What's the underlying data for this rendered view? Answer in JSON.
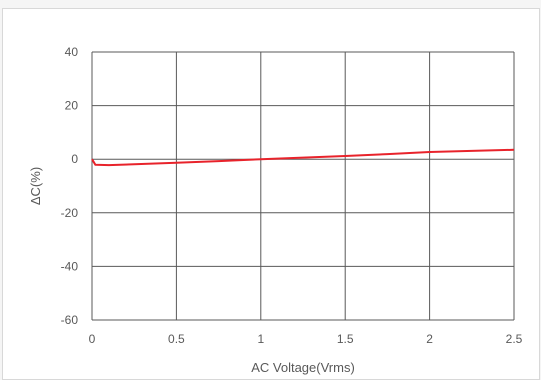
{
  "chart_data": {
    "type": "line",
    "title": "",
    "xlabel": "AC Voltage(Vrms)",
    "ylabel": "ΔC(%)",
    "xlim": [
      0,
      2.5
    ],
    "ylim": [
      -60,
      40
    ],
    "x_ticks": [
      "0",
      "0.5",
      "1",
      "1.5",
      "2",
      "2.5"
    ],
    "y_ticks": [
      "40",
      "20",
      "0",
      "-20",
      "-40",
      "-60"
    ],
    "grid": true,
    "legend": "none",
    "series": [
      {
        "color": "#e8232b",
        "points": [
          [
            0.0,
            0.0
          ],
          [
            0.02,
            -2.1
          ],
          [
            0.1,
            -2.2
          ],
          [
            0.25,
            -1.9
          ],
          [
            0.5,
            -1.3
          ],
          [
            0.75,
            -0.7
          ],
          [
            1.0,
            0.0
          ],
          [
            1.25,
            0.6
          ],
          [
            1.5,
            1.2
          ],
          [
            1.75,
            1.9
          ],
          [
            2.0,
            2.7
          ],
          [
            2.25,
            3.1
          ],
          [
            2.5,
            3.5
          ]
        ]
      }
    ]
  },
  "colors": {
    "grid": "#595959",
    "text": "#595959",
    "line": "#e8232b"
  }
}
